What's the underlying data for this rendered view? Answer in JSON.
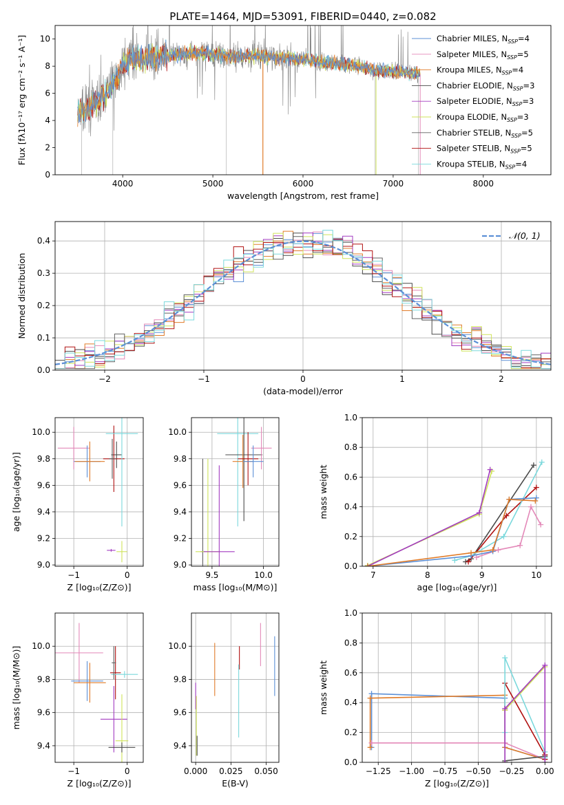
{
  "title": "PLATE=1464, MJD=53091, FIBERID=0440, z=0.082",
  "colors": {
    "chabrier_miles": "#5b8fd6",
    "salpeter_miles": "#e388b8",
    "kroupa_miles": "#e07b28",
    "chabrier_elodie": "#4a4a4a",
    "salpeter_elodie": "#a23ac0",
    "kroupa_elodie": "#cfe35a",
    "chabrier_stelib": "#606060",
    "salpeter_stelib": "#b01010",
    "kroupa_stelib": "#7ad8dc",
    "grey": "#808080",
    "gauss": "#5b8fd6"
  },
  "chart_data": [
    {
      "id": "spectrum",
      "type": "line",
      "xlabel": "wavelength [Angstrom, rest frame]",
      "ylabel": "Flux [fλ10⁻¹⁷ erg cm⁻² s⁻¹ A⁻¹]",
      "xlim": [
        3250,
        8750
      ],
      "ylim": [
        0,
        11
      ],
      "xticks": [
        4000,
        5000,
        6000,
        7000,
        8000
      ],
      "yticks": [
        0,
        2,
        4,
        6,
        8,
        10
      ],
      "legend_position": "upper-right",
      "legend": [
        {
          "base": "Chabrier MILES, N",
          "sub": "SSP",
          "n": "=4"
        },
        {
          "base": "Salpeter MILES, N",
          "sub": "SSP",
          "n": "=5"
        },
        {
          "base": "Kroupa MILES, N",
          "sub": "SSP",
          "n": "=4"
        },
        {
          "base": "Chabrier ELODIE, N",
          "sub": "SSP",
          "n": "=3"
        },
        {
          "base": "Salpeter ELODIE, N",
          "sub": "SSP",
          "n": "=3"
        },
        {
          "base": "Kroupa ELODIE, N",
          "sub": "SSP",
          "n": "=3"
        },
        {
          "base": "Chabrier STELIB, N",
          "sub": "SSP",
          "n": "=5"
        },
        {
          "base": "Salpeter STELIB, N",
          "sub": "SSP",
          "n": "=5"
        },
        {
          "base": "Kroupa STELIB, N",
          "sub": "SSP",
          "n": "=4"
        }
      ],
      "continuum": {
        "x": [
          3500,
          3600,
          3700,
          3800,
          3900,
          3950,
          4000,
          4100,
          4300,
          4500,
          4800,
          5000,
          5200,
          5500,
          5800,
          6000,
          6200,
          6500,
          6800,
          7000,
          7200,
          7300
        ],
        "y": [
          4.6,
          4.8,
          5.3,
          5.8,
          6.8,
          7.2,
          8.2,
          8.4,
          8.6,
          8.8,
          9.0,
          8.9,
          8.7,
          8.8,
          8.6,
          8.5,
          8.3,
          8.1,
          7.7,
          7.6,
          7.5,
          7.4
        ]
      }
    },
    {
      "id": "residuals",
      "type": "histogram",
      "xlabel": "(data-model)/error",
      "ylabel": "Normed distribution",
      "xlim": [
        -2.5,
        2.5
      ],
      "ylim": [
        0,
        0.46
      ],
      "xticks": [
        -2,
        -1,
        0,
        1,
        2
      ],
      "yticks": [
        0.0,
        0.1,
        0.2,
        0.3,
        0.4
      ],
      "grid": true,
      "legend_position": "upper-right",
      "gauss_label": "𝒩(0, 1)",
      "bin_width": 0.1
    },
    {
      "id": "age_vs_Z",
      "type": "errorbar",
      "xlabel": "Z [log₁₀(Z/Z⊙)]",
      "ylabel": "age  [log₁₀(age/yr)]",
      "xlim": [
        -1.35,
        0.3
      ],
      "ylim": [
        8.99,
        10.11
      ],
      "xticks": [
        -1,
        0
      ],
      "yticks": [
        9.0,
        9.2,
        9.4,
        9.6,
        9.8,
        10.0
      ],
      "grid": true,
      "points": [
        {
          "s": "salpeter_miles",
          "x": -1.0,
          "y": 9.88,
          "xe": 0.3,
          "ye": 0.16
        },
        {
          "s": "chabrier_miles",
          "x": -0.75,
          "y": 9.78,
          "xe": 0.25,
          "ye": 0.12
        },
        {
          "s": "kroupa_miles",
          "x": -0.7,
          "y": 9.78,
          "xe": 0.28,
          "ye": 0.15
        },
        {
          "s": "chabrier_elodie",
          "x": -0.2,
          "y": 9.83,
          "xe": 0.1,
          "ye": 0.1
        },
        {
          "s": "salpeter_stelib",
          "x": -0.25,
          "y": 9.8,
          "xe": 0.2,
          "ye": 0.25
        },
        {
          "s": "kroupa_stelib",
          "x": -0.1,
          "y": 9.99,
          "xe": 0.3,
          "ye": 0.7
        },
        {
          "s": "salpeter_elodie",
          "x": -0.3,
          "y": 9.11,
          "xe": 0.08,
          "ye": 0.01
        },
        {
          "s": "kroupa_elodie",
          "x": -0.1,
          "y": 9.1,
          "xe": 0.1,
          "ye": 0.08
        },
        {
          "s": "chabrier_stelib",
          "x": -0.28,
          "y": 9.8,
          "xe": 0.06,
          "ye": 0.15
        }
      ]
    },
    {
      "id": "age_vs_mass",
      "type": "errorbar",
      "xlabel": "mass [log₁₀(M/M⊙)]",
      "ylabel": "",
      "xlim": [
        9.3,
        10.15
      ],
      "ylim": [
        8.99,
        10.11
      ],
      "xticks": [
        9.5,
        10.0
      ],
      "yticks": [
        9.0,
        9.2,
        9.4,
        9.6,
        9.8,
        10.0
      ],
      "grid": true,
      "points": [
        {
          "s": "chabrier_stelib",
          "x": 9.41,
          "y": 9.1,
          "xe": 0.02,
          "ye": 0.7
        },
        {
          "s": "kroupa_elodie",
          "x": 9.46,
          "y": 9.1,
          "xe": 0.12,
          "ye": 0.7
        },
        {
          "s": "salpeter_elodie",
          "x": 9.57,
          "y": 9.1,
          "xe": 0.15,
          "ye": 0.65
        },
        {
          "s": "kroupa_stelib",
          "x": 9.75,
          "y": 9.99,
          "xe": 0.2,
          "ye": 0.7
        },
        {
          "s": "chabrier_elodie",
          "x": 9.81,
          "y": 9.83,
          "xe": 0.18,
          "ye": 0.5
        },
        {
          "s": "kroupa_miles",
          "x": 9.8,
          "y": 9.78,
          "xe": 0.1,
          "ye": 0.2
        },
        {
          "s": "salpeter_stelib",
          "x": 9.85,
          "y": 9.8,
          "xe": 0.1,
          "ye": 0.2
        },
        {
          "s": "salpeter_miles",
          "x": 9.98,
          "y": 9.88,
          "xe": 0.1,
          "ye": 0.16
        },
        {
          "s": "chabrier_miles",
          "x": 9.9,
          "y": 9.78,
          "xe": 0.1,
          "ye": 0.12
        }
      ]
    },
    {
      "id": "weight_vs_age",
      "type": "line",
      "xlabel": "age  [log₁₀(age/yr)]",
      "ylabel": "mass weight",
      "xlim": [
        6.8,
        10.28
      ],
      "ylim": [
        0,
        1.0
      ],
      "xticks": [
        7,
        8,
        9,
        10
      ],
      "yticks": [
        0.0,
        0.2,
        0.4,
        0.6,
        0.8,
        1.0
      ],
      "grid": true,
      "series": [
        {
          "s": "kroupa_elodie",
          "x": [
            6.9,
            8.95,
            9.18
          ],
          "y": [
            0.005,
            0.35,
            0.64
          ]
        },
        {
          "s": "salpeter_elodie",
          "x": [
            6.9,
            8.95,
            9.15
          ],
          "y": [
            0.0,
            0.36,
            0.65
          ]
        },
        {
          "s": "chabrier_elodie",
          "x": [
            8.7,
            8.8,
            9.95
          ],
          "y": [
            0.03,
            0.05,
            0.68
          ]
        },
        {
          "s": "salpeter_stelib",
          "x": [
            8.75,
            9.45,
            10.0
          ],
          "y": [
            0.03,
            0.34,
            0.53
          ]
        },
        {
          "s": "kroupa_stelib",
          "x": [
            8.5,
            8.8,
            9.4,
            10.1
          ],
          "y": [
            0.04,
            0.07,
            0.2,
            0.7
          ]
        },
        {
          "s": "salpeter_miles",
          "x": [
            8.9,
            9.3,
            9.7,
            9.9,
            10.08
          ],
          "y": [
            0.06,
            0.11,
            0.14,
            0.4,
            0.28
          ]
        },
        {
          "s": "chabrier_miles",
          "x": [
            6.9,
            8.8,
            9.2,
            9.5,
            10.0
          ],
          "y": [
            0.0,
            0.07,
            0.1,
            0.45,
            0.46
          ]
        },
        {
          "s": "kroupa_miles",
          "x": [
            6.9,
            8.8,
            9.2,
            9.5,
            9.98
          ],
          "y": [
            0.0,
            0.09,
            0.11,
            0.45,
            0.44
          ]
        }
      ]
    },
    {
      "id": "mass_vs_Z",
      "type": "errorbar",
      "xlabel": "Z [log₁₀(Z/Z⊙)]",
      "ylabel": "mass [log₁₀(M/M⊙)]",
      "xlim": [
        -1.35,
        0.3
      ],
      "ylim": [
        9.3,
        10.2
      ],
      "xticks": [
        -1,
        0
      ],
      "yticks": [
        9.4,
        9.6,
        9.8,
        10.0
      ],
      "grid": true,
      "points": [
        {
          "s": "salpeter_miles",
          "x": -0.9,
          "y": 9.96,
          "xe": 0.45,
          "ye": 0.18
        },
        {
          "s": "chabrier_miles",
          "x": -0.75,
          "y": 9.79,
          "xe": 0.3,
          "ye": 0.12
        },
        {
          "s": "kroupa_miles",
          "x": -0.7,
          "y": 9.78,
          "xe": 0.3,
          "ye": 0.12
        },
        {
          "s": "salpeter_stelib",
          "x": -0.22,
          "y": 9.84,
          "xe": 0.1,
          "ye": 0.16
        },
        {
          "s": "kroupa_stelib",
          "x": -0.05,
          "y": 9.83,
          "xe": 0.25,
          "ye": 0.02
        },
        {
          "s": "chabrier_stelib",
          "x": -0.25,
          "y": 9.9,
          "xe": 0.04,
          "ye": 0.1
        },
        {
          "s": "salpeter_elodie",
          "x": -0.25,
          "y": 9.56,
          "xe": 0.25,
          "ye": 0.2
        },
        {
          "s": "kroupa_elodie",
          "x": -0.1,
          "y": 9.43,
          "xe": 0.12,
          "ye": 0.28
        },
        {
          "s": "chabrier_elodie",
          "x": -0.1,
          "y": 9.39,
          "xe": 0.25,
          "ye": 0.03
        }
      ]
    },
    {
      "id": "mass_vs_ebv",
      "type": "errorbar",
      "xlabel": "E(B-V)",
      "ylabel": "",
      "xlim": [
        -0.003,
        0.059
      ],
      "ylim": [
        9.3,
        10.2
      ],
      "xticks": [
        0.0,
        0.025,
        0.05
      ],
      "xticklabels": [
        "0.000",
        "0.025",
        "0.050"
      ],
      "yticks": [
        9.4,
        9.6,
        9.8,
        10.0
      ],
      "grid": true,
      "points": [
        {
          "s": "salpeter_elodie",
          "x": 0.0,
          "y": 9.7,
          "xe": 0.0,
          "ye": 0.08
        },
        {
          "s": "kroupa_elodie",
          "x": 0.0005,
          "y": 9.52,
          "xe": 0.0,
          "ye": 0.18
        },
        {
          "s": "chabrier_elodie",
          "x": 0.001,
          "y": 9.4,
          "xe": 0.0,
          "ye": 0.06
        },
        {
          "s": "kroupa_miles",
          "x": 0.0135,
          "y": 9.86,
          "xe": 0.0,
          "ye": 0.16
        },
        {
          "s": "salpeter_stelib",
          "x": 0.031,
          "y": 9.93,
          "xe": 0.0,
          "ye": 0.07
        },
        {
          "s": "kroupa_stelib",
          "x": 0.0305,
          "y": 9.67,
          "xe": 0.0,
          "ye": 0.22
        },
        {
          "s": "salpeter_miles",
          "x": 0.046,
          "y": 10.01,
          "xe": 0.0,
          "ye": 0.13
        },
        {
          "s": "chabrier_miles",
          "x": 0.056,
          "y": 9.88,
          "xe": 0.0,
          "ye": 0.18
        }
      ]
    },
    {
      "id": "weight_vs_Z",
      "type": "line",
      "xlabel": "Z [log₁₀(Z/Z⊙)]",
      "ylabel": "mass weight",
      "xlim": [
        -1.37,
        0.05
      ],
      "ylim": [
        0,
        1.0
      ],
      "xticks": [
        -1.25,
        -1.0,
        -0.75,
        -0.5,
        -0.25,
        0.0
      ],
      "xticklabels": [
        "−1.25",
        "−1.00",
        "−0.75",
        "−0.50",
        "−0.25",
        "0.00"
      ],
      "yticks": [
        0.0,
        0.2,
        0.4,
        0.6,
        0.8,
        1.0
      ],
      "grid": true,
      "series": [
        {
          "s": "chabrier_miles",
          "x": [
            -1.3,
            -1.3,
            -0.3,
            -0.3,
            0.0
          ],
          "y": [
            0.1,
            0.46,
            0.43,
            0.1,
            0.02
          ]
        },
        {
          "s": "kroupa_miles",
          "x": [
            -1.31,
            -1.31,
            -0.3,
            -0.3,
            0.0
          ],
          "y": [
            0.1,
            0.43,
            0.45,
            0.1,
            0.02
          ]
        },
        {
          "s": "salpeter_miles",
          "x": [
            -1.3,
            -1.3,
            -0.3,
            -0.3,
            0.0
          ],
          "y": [
            0.13,
            0.13,
            0.13,
            0.13,
            0.02
          ]
        },
        {
          "s": "chabrier_elodie",
          "x": [
            -0.3,
            -0.3,
            0.0,
            0.0
          ],
          "y": [
            0.0,
            0.01,
            0.04,
            0.05
          ]
        },
        {
          "s": "salpeter_stelib",
          "x": [
            -0.3,
            -0.3,
            0.0,
            0.0
          ],
          "y": [
            0.35,
            0.53,
            0.05,
            0.02
          ]
        },
        {
          "s": "kroupa_stelib",
          "x": [
            -0.3,
            -0.3,
            0.0,
            0.0
          ],
          "y": [
            0.2,
            0.7,
            0.07,
            0.03
          ]
        },
        {
          "s": "kroupa_elodie",
          "x": [
            -0.3,
            -0.3,
            0.0,
            0.0
          ],
          "y": [
            0.0,
            0.35,
            0.64,
            0.0
          ]
        },
        {
          "s": "salpeter_elodie",
          "x": [
            -0.3,
            -0.3,
            0.0,
            0.0
          ],
          "y": [
            0.0,
            0.36,
            0.65,
            0.0
          ]
        }
      ]
    }
  ]
}
